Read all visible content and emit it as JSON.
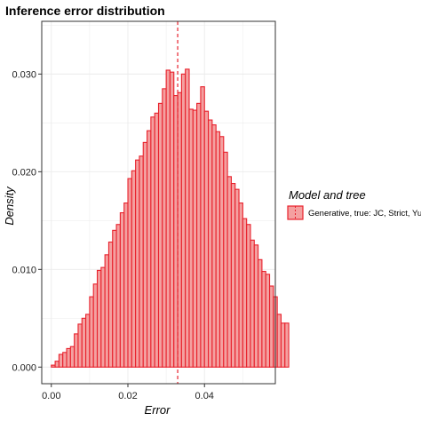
{
  "chart_data": {
    "type": "bar",
    "title": "Inference error distribution",
    "xlabel": "Error",
    "ylabel": "Density",
    "xlim": [
      -0.0025,
      0.0585
    ],
    "ylim": [
      -0.0017,
      0.0354
    ],
    "x_ticks": [
      0.0,
      0.02,
      0.04
    ],
    "x_tick_labels": [
      "0.00",
      "0.02",
      "0.04"
    ],
    "y_ticks": [
      0.0,
      0.01,
      0.02,
      0.03
    ],
    "y_tick_labels": [
      "0.000",
      "0.010",
      "0.020",
      "0.030"
    ],
    "grid": true,
    "legend_position": "right",
    "bin_width": 0.001,
    "bin_start": 0.0,
    "vline_x": 0.033,
    "vline_style": "dashed",
    "series": [
      {
        "name": "Generative, true: JC, Strict, Yule",
        "color": "#e8212c",
        "fill": "#f4a0a0",
        "values": [
          0.0002,
          0.0006,
          0.0013,
          0.0015,
          0.0019,
          0.0021,
          0.0034,
          0.0044,
          0.005,
          0.0054,
          0.0072,
          0.0085,
          0.0099,
          0.0102,
          0.0115,
          0.0128,
          0.014,
          0.0146,
          0.0158,
          0.0168,
          0.0193,
          0.0201,
          0.0212,
          0.0216,
          0.023,
          0.0242,
          0.0256,
          0.026,
          0.027,
          0.0285,
          0.0304,
          0.0302,
          0.0278,
          0.0281,
          0.03,
          0.0305,
          0.0264,
          0.0263,
          0.027,
          0.0287,
          0.0262,
          0.0253,
          0.0248,
          0.0241,
          0.0236,
          0.022,
          0.0195,
          0.0188,
          0.0182,
          0.0168,
          0.0152,
          0.0146,
          0.013,
          0.0125,
          0.011,
          0.0098,
          0.0095,
          0.0083,
          0.0072,
          0.0054,
          0.0045,
          0.0045
        ]
      }
    ]
  }
}
